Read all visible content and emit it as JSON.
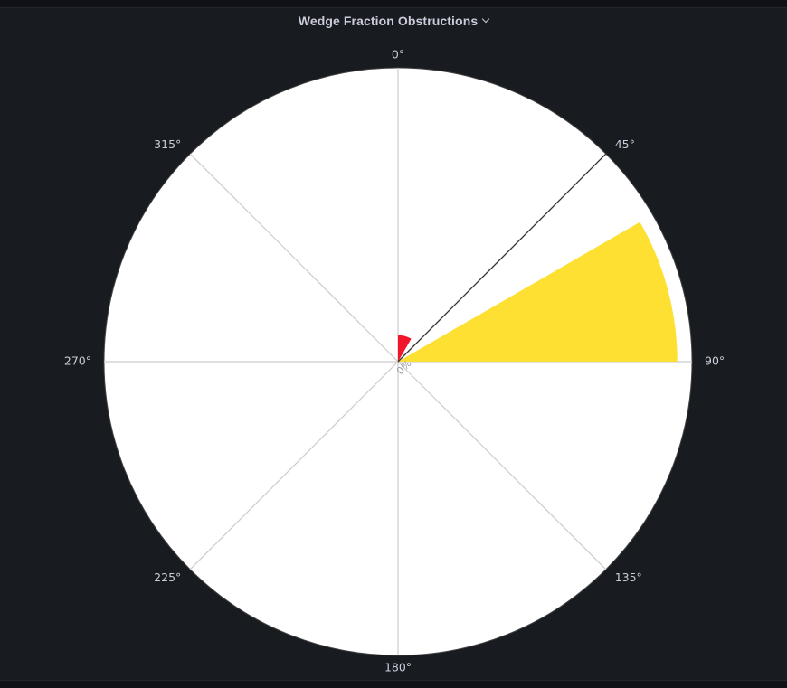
{
  "panel": {
    "title": "Wedge Fraction Obstructions",
    "menu_icon": "chevron-down-icon"
  },
  "colors": {
    "background": "#111217",
    "panel": "#181b1f",
    "plot_bg": "#ffffff",
    "grid": "#cccccc",
    "text": "#ccccdc"
  },
  "chart_data": {
    "type": "barpolar",
    "title": "Wedge Fraction Obstructions",
    "angular_axis": {
      "direction": "clockwise",
      "rotation": "0° at top",
      "ticks": [
        "0°",
        "45°",
        "90°",
        "135°",
        "180°",
        "225°",
        "270°",
        "315°"
      ]
    },
    "radial_axis": {
      "range_percent": [
        0,
        100
      ],
      "tick_labels": [
        "0%"
      ]
    },
    "grid": true,
    "highlight_line_angle_deg": 45,
    "bars": [
      {
        "theta_start_deg": 0,
        "theta_end_deg": 30,
        "r_percent": 9,
        "color": "#f2162a"
      },
      {
        "theta_start_deg": 60,
        "theta_end_deg": 90,
        "r_percent": 95,
        "color": "#fde032"
      }
    ]
  }
}
